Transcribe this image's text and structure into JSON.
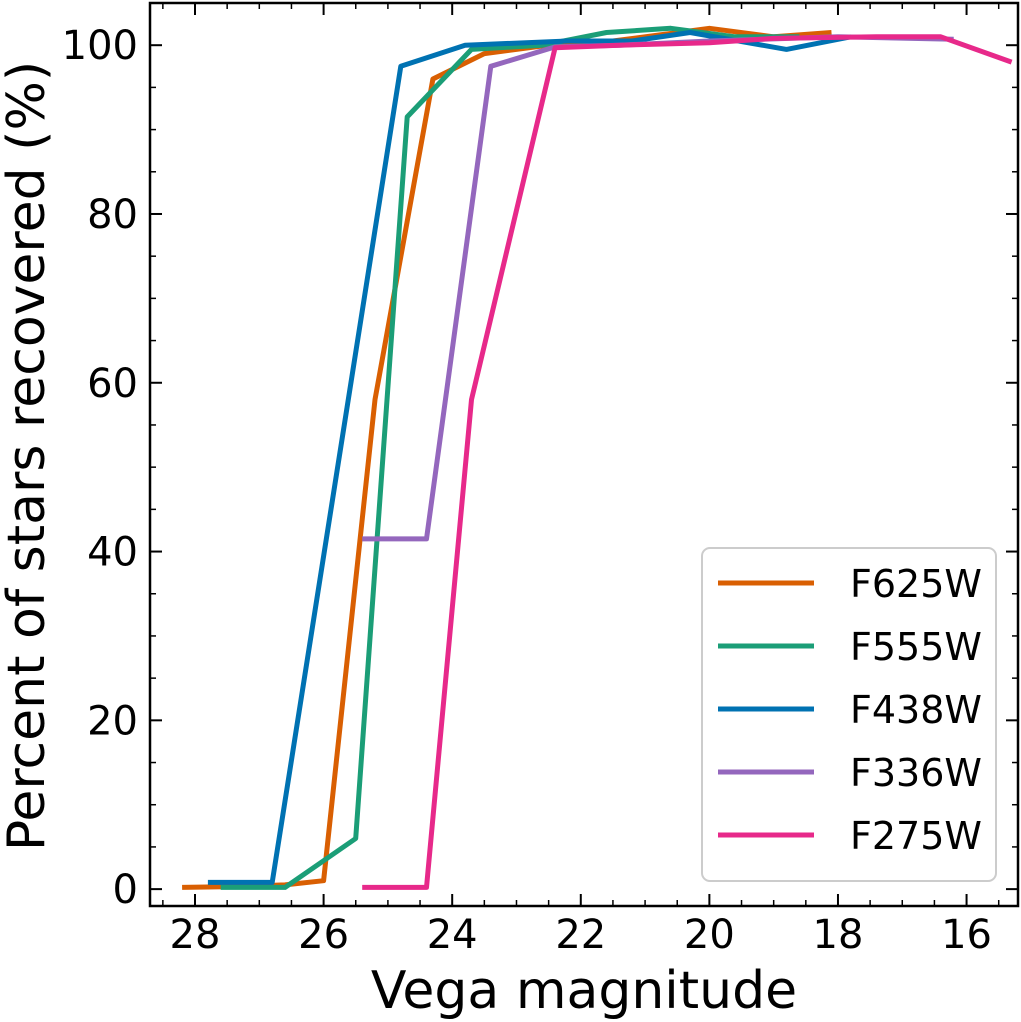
{
  "chart_data": {
    "type": "line",
    "xlabel": "Vega magnitude",
    "ylabel": "Percent of stars recovered (%)",
    "xlim": [
      28.7,
      15.2
    ],
    "ylim": [
      -2,
      105
    ],
    "xticks": [
      28,
      26,
      24,
      22,
      20,
      18,
      16
    ],
    "yticks": [
      0,
      20,
      40,
      60,
      80,
      100
    ],
    "legend_position": "lower-right",
    "series": [
      {
        "name": "F625W",
        "color": "#d95f02",
        "points": [
          [
            28.2,
            0.2
          ],
          [
            27.4,
            0.3
          ],
          [
            26.6,
            0.5
          ],
          [
            26.0,
            1.0
          ],
          [
            25.2,
            58.0
          ],
          [
            24.3,
            96.0
          ],
          [
            23.5,
            99.0
          ],
          [
            22.5,
            100.0
          ],
          [
            21.5,
            100.5
          ],
          [
            20.0,
            102.0
          ],
          [
            19.0,
            101.0
          ],
          [
            18.1,
            101.5
          ]
        ]
      },
      {
        "name": "F555W",
        "color": "#1b9e77",
        "points": [
          [
            27.6,
            0.2
          ],
          [
            26.6,
            0.2
          ],
          [
            25.5,
            6.0
          ],
          [
            24.7,
            91.5
          ],
          [
            23.7,
            99.5
          ],
          [
            22.6,
            100.0
          ],
          [
            21.6,
            101.5
          ],
          [
            20.6,
            102.0
          ],
          [
            19.6,
            101.0
          ],
          [
            18.6,
            101.0
          ]
        ]
      },
      {
        "name": "F438W",
        "color": "#0072b2",
        "points": [
          [
            27.8,
            0.8
          ],
          [
            26.8,
            0.8
          ],
          [
            24.8,
            97.5
          ],
          [
            23.8,
            100.0
          ],
          [
            22.2,
            100.5
          ],
          [
            21.2,
            100.5
          ],
          [
            20.3,
            101.5
          ],
          [
            18.8,
            99.5
          ],
          [
            17.8,
            101.0
          ]
        ]
      },
      {
        "name": "F336W",
        "color": "#9467bd",
        "points": [
          [
            25.4,
            41.5
          ],
          [
            24.4,
            41.5
          ],
          [
            23.4,
            97.5
          ],
          [
            22.4,
            99.8
          ],
          [
            21.4,
            100.0
          ],
          [
            20.0,
            100.5
          ],
          [
            18.0,
            101.0
          ],
          [
            16.2,
            100.7
          ]
        ]
      },
      {
        "name": "F275W",
        "color": "#e7298a",
        "points": [
          [
            25.4,
            0.2
          ],
          [
            24.4,
            0.2
          ],
          [
            23.7,
            58.0
          ],
          [
            22.4,
            99.7
          ],
          [
            21.4,
            100.0
          ],
          [
            20.0,
            100.3
          ],
          [
            19.0,
            100.8
          ],
          [
            17.4,
            101.0
          ],
          [
            16.4,
            101.0
          ],
          [
            15.3,
            98.0
          ]
        ]
      }
    ]
  }
}
